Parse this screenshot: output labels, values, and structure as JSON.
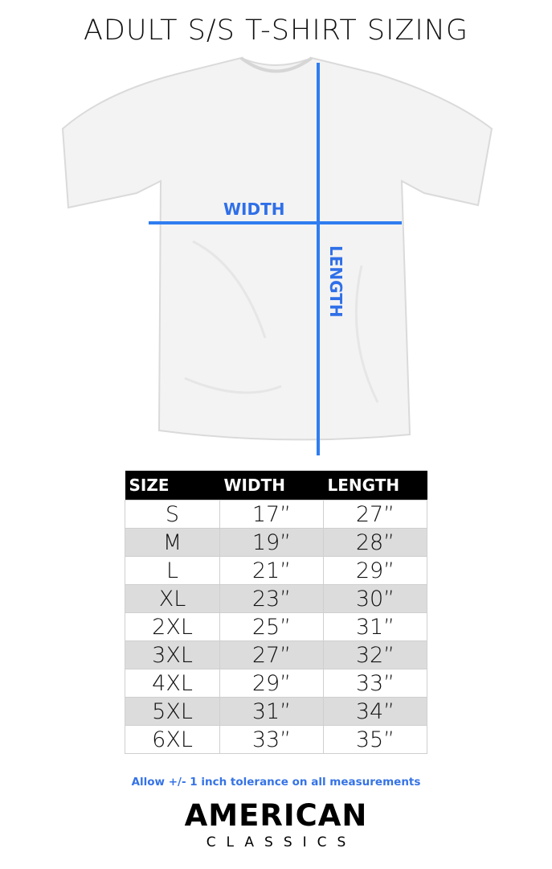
{
  "title": "ADULT S/S T-SHIRT SIZING",
  "diagram": {
    "width_label": "WIDTH",
    "length_label": "LENGTH",
    "line_color": "#2f7df0"
  },
  "table": {
    "headers": [
      "SIZE",
      "WIDTH",
      "LENGTH"
    ],
    "rows": [
      [
        "S",
        "17”",
        "27”"
      ],
      [
        "M",
        "19”",
        "28”"
      ],
      [
        "L",
        "21”",
        "29”"
      ],
      [
        "XL",
        "23”",
        "30”"
      ],
      [
        "2XL",
        "25”",
        "31”"
      ],
      [
        "3XL",
        "27”",
        "32”"
      ],
      [
        "4XL",
        "29”",
        "33”"
      ],
      [
        "5XL",
        "31”",
        "34”"
      ],
      [
        "6XL",
        "33”",
        "35”"
      ]
    ]
  },
  "note": "Allow +/- 1 inch tolerance on all measurements",
  "logo": {
    "line1": "AMERICAN",
    "line2": "CLASSICS"
  }
}
